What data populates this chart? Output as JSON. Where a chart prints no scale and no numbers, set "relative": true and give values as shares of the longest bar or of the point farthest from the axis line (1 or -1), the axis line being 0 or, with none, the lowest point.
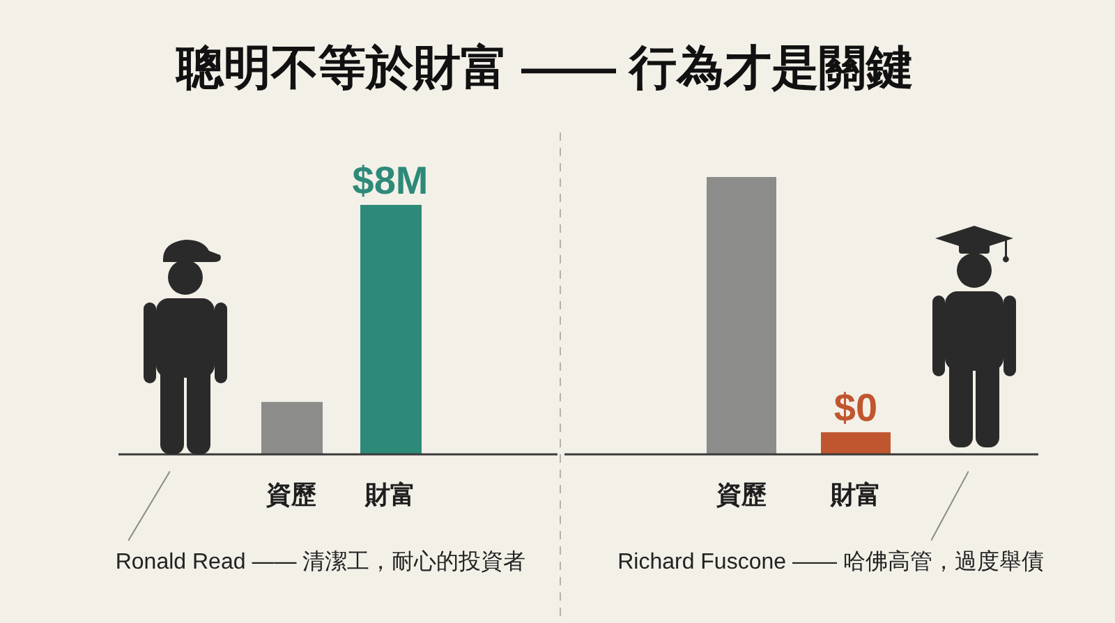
{
  "chart_data": [
    {
      "type": "bar",
      "title": "聰明不等於財富 —— 行為才是關鍵",
      "categories": [
        "資歷",
        "財富"
      ],
      "values": [
        0.21,
        1
      ],
      "colors": [
        "#8c8c8b",
        "#2d8a79"
      ],
      "relative": true,
      "annotations": [
        {
          "text": "$8M",
          "x": "財富",
          "y": 1
        },
        "Ronald Read —— 清潔工，耐心的投資者"
      ]
    },
    {
      "type": "bar",
      "categories": [
        "資歷",
        "財富"
      ],
      "values": [
        1,
        0.08
      ],
      "colors": [
        "#8c8c8b",
        "#c0562f"
      ],
      "relative": true,
      "annotations": [
        {
          "text": "$0",
          "x": "財富",
          "y": 0.08
        },
        "Richard Fuscone —— 哈佛高管，過度舉債"
      ]
    }
  ]
}
